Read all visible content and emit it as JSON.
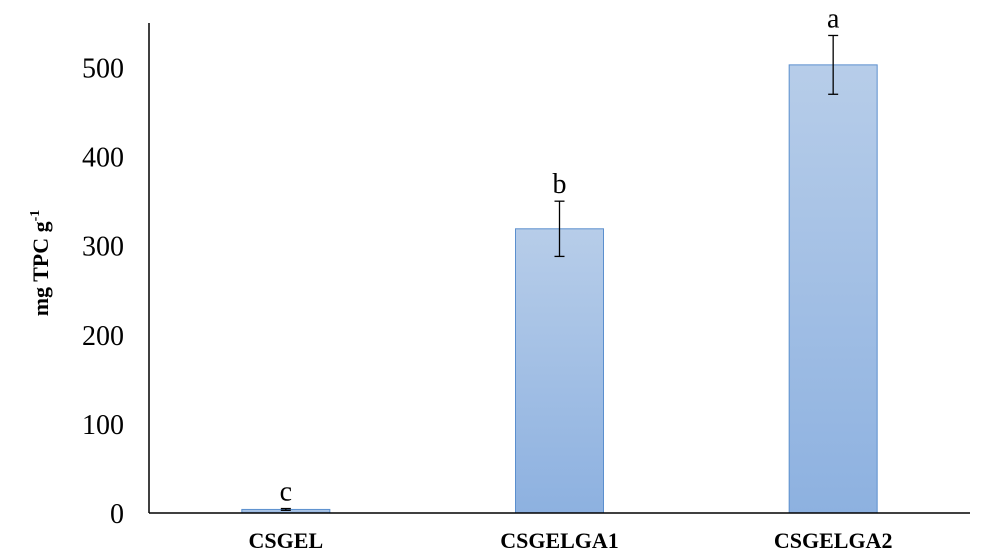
{
  "chart_data": {
    "type": "bar",
    "categories": [
      "CSGEL",
      "CSGELGA1",
      "CSGELGA2"
    ],
    "values": [
      4,
      319,
      503
    ],
    "errors": [
      1,
      31,
      33
    ],
    "significance_letters": [
      "c",
      "b",
      "a"
    ],
    "ylabel": "mg TPC g",
    "ylabel_superscript": "-1",
    "ylim": [
      0,
      550
    ],
    "yticks": [
      0,
      100,
      200,
      300,
      400,
      500
    ],
    "ytick_labels": [
      "0",
      "100",
      "200",
      "300",
      "400",
      "500"
    ],
    "grid": false,
    "legend": "none",
    "colors": {
      "bar_top": "#b7cde9",
      "bar_bottom": "#8db1e0",
      "bar_edge": "#5b8fce",
      "axis": "#000000"
    }
  }
}
